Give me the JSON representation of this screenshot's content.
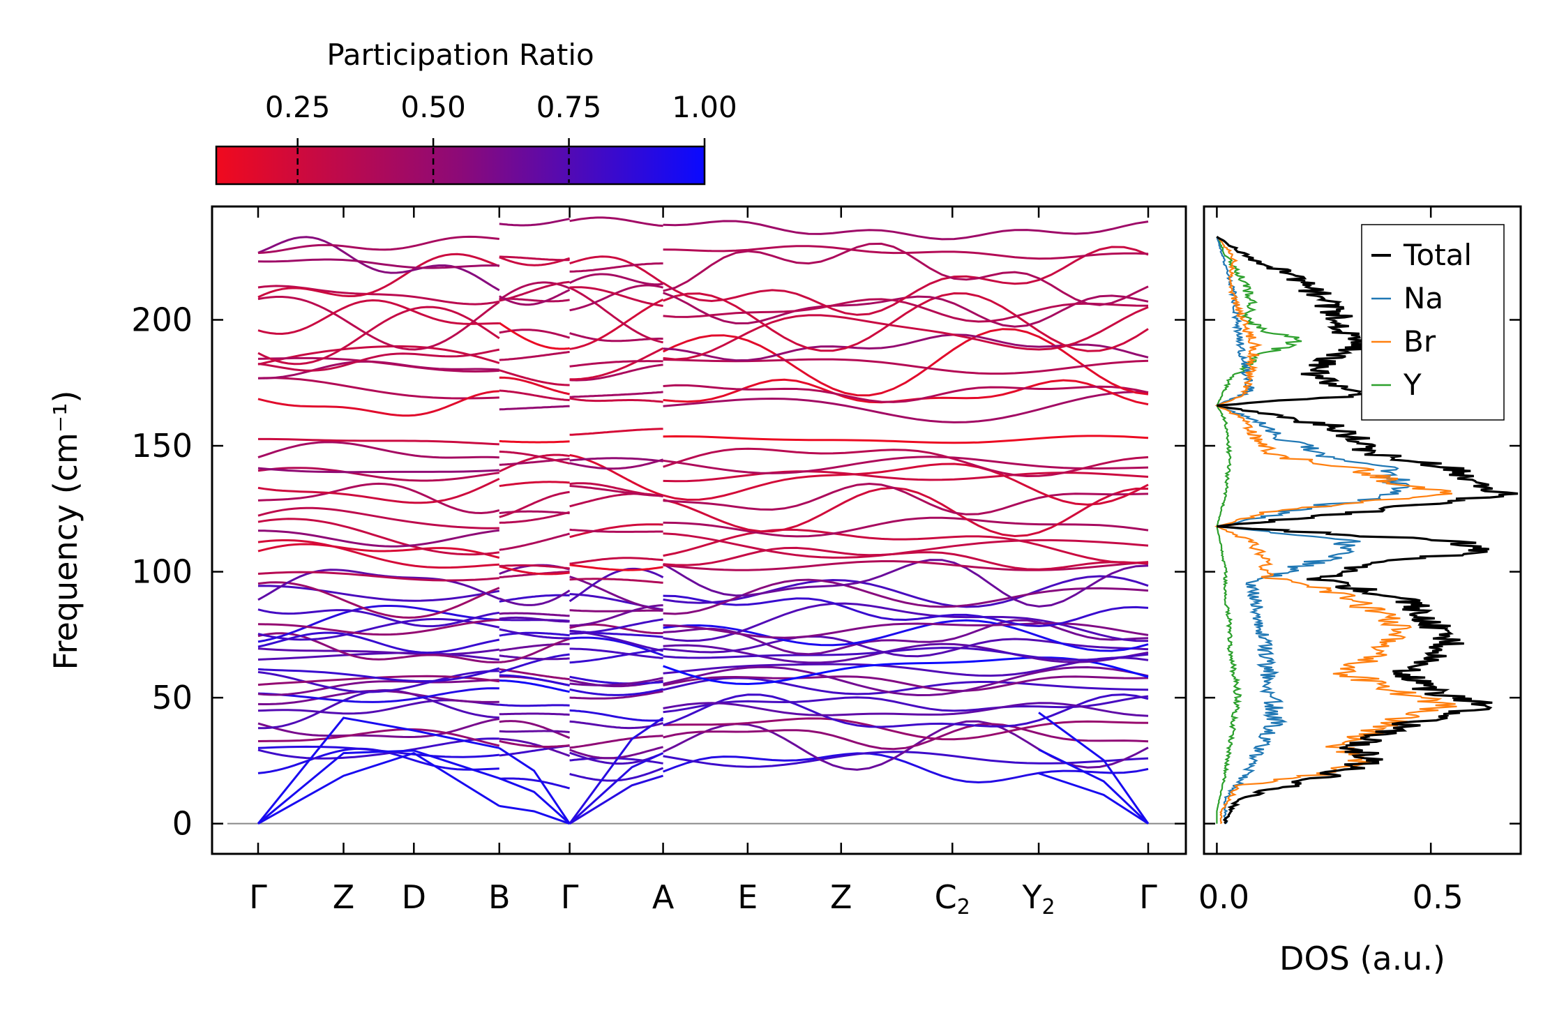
{
  "colorbar": {
    "label": "Participation Ratio",
    "range": [
      0.1,
      1.0
    ],
    "ticks": [
      "0.25",
      "0.50",
      "0.75",
      "1.00"
    ],
    "tick_values": [
      0.25,
      0.5,
      0.75,
      1.0
    ],
    "low_color": "#f00a1e",
    "mid_color": "#8c0a78",
    "high_color": "#0a0aff"
  },
  "chart_data": [
    {
      "type": "line",
      "title": "",
      "xlabel": "",
      "ylabel": "Frequency (cm⁻¹)",
      "ylim": [
        -12,
        245
      ],
      "yticks": [
        "0",
        "50",
        "100",
        "150",
        "200"
      ],
      "ytick_values": [
        0,
        50,
        100,
        150,
        200
      ],
      "path_labels": [
        "Γ",
        "Z",
        "D",
        "B",
        "Γ",
        "A",
        "E",
        "Z",
        "C₂",
        "Y₂",
        "Γ"
      ],
      "path_positions": [
        0,
        0.96,
        1.75,
        2.71,
        3.5,
        4.55,
        5.5,
        6.55,
        7.8,
        8.77,
        10.0
      ],
      "segments": [
        [
          0,
          2.71
        ],
        [
          2.71,
          3.5
        ],
        [
          3.5,
          4.55
        ],
        [
          4.55,
          10.0
        ]
      ],
      "acoustic_branches": [
        {
          "name": "acoustic-1",
          "x": [
            0,
            0.96,
            1.75,
            2.71
          ],
          "y": [
            0,
            19,
            28,
            7
          ]
        },
        {
          "name": "acoustic-2",
          "x": [
            0,
            0.96,
            1.75,
            2.71
          ],
          "y": [
            0,
            28,
            29,
            18
          ]
        },
        {
          "name": "acoustic-3",
          "x": [
            0,
            0.96,
            1.75,
            2.71
          ],
          "y": [
            0,
            42,
            37,
            30
          ]
        }
      ],
      "optical_branch_levels": [
        21,
        26,
        32,
        34,
        37,
        43,
        45,
        48,
        52,
        55,
        58,
        60,
        63,
        66,
        68,
        70,
        72,
        75,
        78,
        80,
        84,
        88,
        92,
        94,
        99,
        104,
        108,
        112,
        118,
        124,
        130,
        133,
        136,
        141,
        145,
        152,
        166,
        170,
        176,
        180,
        185,
        189,
        194,
        199,
        205,
        209,
        212,
        218,
        224,
        232
      ],
      "color_scale": "participation ratio",
      "zero_line_color": "#888888"
    },
    {
      "type": "line",
      "xlabel": "DOS (a.u.)",
      "ylabel": "",
      "xlim": [
        -0.03,
        0.71
      ],
      "xticks": [
        "0.0",
        "0.5"
      ],
      "xtick_values": [
        0,
        0.5
      ],
      "legend": {
        "position": "top-right",
        "entries": [
          "Total",
          "Na",
          "Br",
          "Y"
        ]
      },
      "series": [
        {
          "name": "Total",
          "color": "#000000",
          "peaks": [
            [
              2,
              0.02
            ],
            [
              10,
              0.05
            ],
            [
              20,
              0.28
            ],
            [
              26,
              0.37
            ],
            [
              30,
              0.31
            ],
            [
              40,
              0.45
            ],
            [
              47,
              0.64
            ],
            [
              52,
              0.51
            ],
            [
              60,
              0.43
            ],
            [
              66,
              0.5
            ],
            [
              72,
              0.55
            ],
            [
              76,
              0.52
            ],
            [
              82,
              0.49
            ],
            [
              88,
              0.45
            ],
            [
              92,
              0.36
            ],
            [
              97,
              0.24
            ],
            [
              103,
              0.33
            ],
            [
              108,
              0.63
            ],
            [
              112,
              0.56
            ],
            [
              118,
              0.0
            ],
            [
              124,
              0.35
            ],
            [
              131,
              0.68
            ],
            [
              136,
              0.58
            ],
            [
              141,
              0.55
            ],
            [
              147,
              0.36
            ],
            [
              153,
              0.32
            ],
            [
              158,
              0.26
            ],
            [
              166,
              0.0
            ],
            [
              170,
              0.32
            ],
            [
              174,
              0.26
            ],
            [
              181,
              0.22
            ],
            [
              190,
              0.34
            ],
            [
              193,
              0.31
            ],
            [
              200,
              0.29
            ],
            [
              213,
              0.22
            ],
            [
              219,
              0.16
            ],
            [
              225,
              0.07
            ],
            [
              233,
              0.0
            ]
          ]
        },
        {
          "name": "Na",
          "color": "#1f77b4",
          "peaks": [
            [
              10,
              0.02
            ],
            [
              20,
              0.07
            ],
            [
              30,
              0.1
            ],
            [
              40,
              0.14
            ],
            [
              50,
              0.13
            ],
            [
              60,
              0.12
            ],
            [
              70,
              0.11
            ],
            [
              80,
              0.1
            ],
            [
              88,
              0.09
            ],
            [
              96,
              0.08
            ],
            [
              105,
              0.26
            ],
            [
              112,
              0.32
            ],
            [
              118,
              0.0
            ],
            [
              125,
              0.2
            ],
            [
              131,
              0.44
            ],
            [
              141,
              0.39
            ],
            [
              146,
              0.25
            ],
            [
              153,
              0.16
            ],
            [
              160,
              0.09
            ],
            [
              166,
              0.0
            ],
            [
              172,
              0.08
            ],
            [
              186,
              0.06
            ],
            [
              196,
              0.05
            ],
            [
              210,
              0.04
            ],
            [
              233,
              0.0
            ]
          ]
        },
        {
          "name": "Br",
          "color": "#ff7f0e",
          "peaks": [
            [
              5,
              0.01
            ],
            [
              15,
              0.05
            ],
            [
              20,
              0.27
            ],
            [
              25,
              0.33
            ],
            [
              30,
              0.28
            ],
            [
              40,
              0.4
            ],
            [
              47,
              0.54
            ],
            [
              52,
              0.43
            ],
            [
              60,
              0.3
            ],
            [
              68,
              0.38
            ],
            [
              75,
              0.44
            ],
            [
              82,
              0.39
            ],
            [
              88,
              0.33
            ],
            [
              94,
              0.23
            ],
            [
              98,
              0.12
            ],
            [
              105,
              0.11
            ],
            [
              112,
              0.08
            ],
            [
              118,
              0.0
            ],
            [
              124,
              0.13
            ],
            [
              131,
              0.55
            ],
            [
              136,
              0.4
            ],
            [
              141,
              0.32
            ],
            [
              146,
              0.14
            ],
            [
              153,
              0.09
            ],
            [
              160,
              0.07
            ],
            [
              166,
              0.0
            ],
            [
              170,
              0.06
            ],
            [
              178,
              0.08
            ],
            [
              190,
              0.09
            ],
            [
              200,
              0.06
            ],
            [
              213,
              0.03
            ],
            [
              225,
              0.04
            ],
            [
              233,
              0.0
            ]
          ]
        },
        {
          "name": "Y",
          "color": "#2ca02c",
          "peaks": [
            [
              5,
              0.0
            ],
            [
              20,
              0.02
            ],
            [
              30,
              0.03
            ],
            [
              40,
              0.04
            ],
            [
              50,
              0.05
            ],
            [
              60,
              0.04
            ],
            [
              70,
              0.03
            ],
            [
              80,
              0.03
            ],
            [
              90,
              0.02
            ],
            [
              100,
              0.02
            ],
            [
              110,
              0.01
            ],
            [
              118,
              0.0
            ],
            [
              130,
              0.02
            ],
            [
              145,
              0.03
            ],
            [
              160,
              0.02
            ],
            [
              166,
              0.0
            ],
            [
              176,
              0.03
            ],
            [
              186,
              0.1
            ],
            [
              192,
              0.19
            ],
            [
              196,
              0.11
            ],
            [
              200,
              0.07
            ],
            [
              208,
              0.08
            ],
            [
              216,
              0.06
            ],
            [
              226,
              0.02
            ],
            [
              233,
              0.0
            ]
          ]
        }
      ]
    }
  ]
}
